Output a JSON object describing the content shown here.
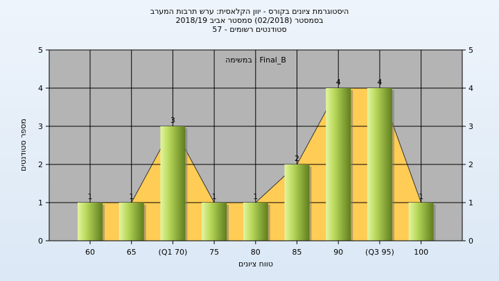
{
  "header": {
    "title": "היסטוגרמת ציונים בקורס - יוון הקלאסית: ערש תרבות המערב",
    "subtitle": "בסמסטר  (02/2018)  סמסטר אביב 2018/19",
    "registered": "סטודנטים רשומים - 57"
  },
  "chart_data": {
    "type": "bar",
    "categories": [
      "60",
      "65",
      "(Q1 70)",
      "75",
      "80",
      "85",
      "90",
      "(Q3 95)",
      "100"
    ],
    "values": [
      1,
      1,
      3,
      1,
      1,
      2,
      4,
      4,
      1
    ],
    "legend": "Final_B : במשימה",
    "xlabel": "טווח ציונים",
    "ylabel": "מספר סטודנטים",
    "ylim": [
      0,
      5
    ],
    "yticks": [
      0,
      1,
      2,
      3,
      4,
      5
    ],
    "grid": true,
    "colors": {
      "plot_bg": "#b4b4b4",
      "bar_light": "#d9ef8c",
      "bar_dark": "#6f8d25",
      "area": "#ffcc55",
      "grid": "#000000"
    }
  }
}
